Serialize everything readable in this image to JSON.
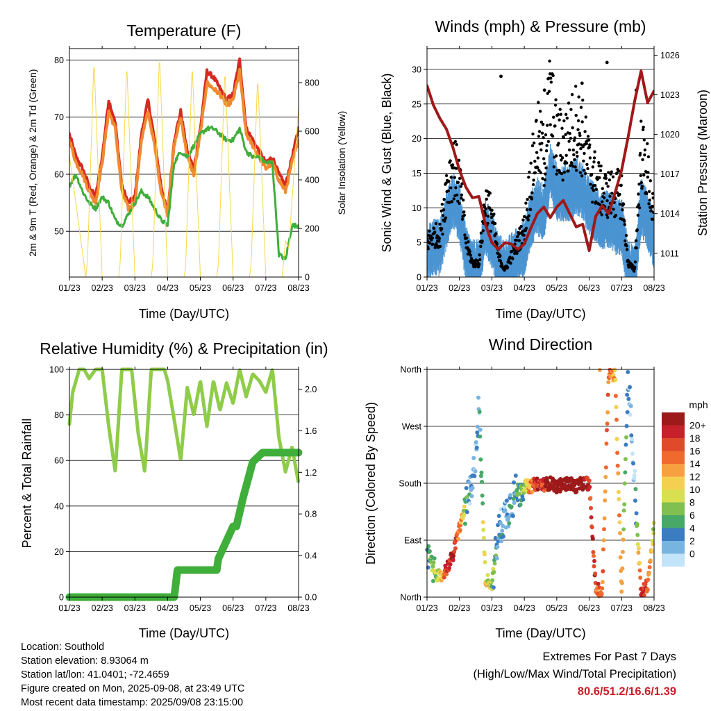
{
  "ticks_x": [
    "01/23",
    "02/23",
    "03/23",
    "04/23",
    "05/23",
    "06/23",
    "07/23",
    "08/23"
  ],
  "chart_data": [
    {
      "type": "line",
      "title": "Temperature (F)",
      "xlabel": "Time (Day/UTC)",
      "ylabel": "2m & 9m T (Red, Orange) & 2m Td (Green)",
      "y2label": "Solar Insolation (Yellow)",
      "ylim": [
        42,
        82
      ],
      "y2lim": [
        0,
        940
      ],
      "yticks": [
        50,
        60,
        70,
        80
      ],
      "y2ticks": [
        0,
        200,
        400,
        600,
        800
      ],
      "grid": true,
      "series": [
        {
          "name": "2m T",
          "color": "#d62a20",
          "x": [
            0,
            0.2,
            0.4,
            0.6,
            0.8,
            1.0,
            1.2,
            1.4,
            1.6,
            1.8,
            2.0,
            2.2,
            2.4,
            2.6,
            2.8,
            3.0,
            3.2,
            3.4,
            3.6,
            3.8,
            4.0,
            4.2,
            4.4,
            4.6,
            4.8,
            5.0,
            5.2,
            5.4,
            5.6,
            5.8,
            6.0,
            6.2,
            6.4,
            6.6,
            6.8,
            7.0
          ],
          "values": [
            67,
            63,
            61,
            58,
            56,
            63,
            73,
            69,
            58,
            55,
            56,
            67,
            73,
            66,
            58,
            53,
            66,
            71,
            64,
            61,
            68,
            78,
            77,
            75,
            73,
            74,
            80,
            68,
            66,
            64,
            62,
            63,
            60,
            58,
            63,
            68
          ]
        },
        {
          "name": "9m T",
          "color": "#f08a30",
          "x": [
            0,
            0.2,
            0.4,
            0.6,
            0.8,
            1.0,
            1.2,
            1.4,
            1.6,
            1.8,
            2.0,
            2.2,
            2.4,
            2.6,
            2.8,
            3.0,
            3.2,
            3.4,
            3.6,
            3.8,
            4.0,
            4.2,
            4.4,
            4.6,
            4.8,
            5.0,
            5.2,
            5.4,
            5.6,
            5.8,
            6.0,
            6.2,
            6.4,
            6.6,
            6.8,
            7.0
          ],
          "values": [
            66,
            62,
            60,
            57,
            55,
            62,
            71,
            68,
            57,
            54,
            55,
            66,
            71,
            65,
            57,
            53,
            65,
            70,
            63,
            60,
            67,
            76,
            75,
            74,
            72,
            73,
            78,
            67,
            65,
            63,
            61,
            62,
            59,
            57,
            62,
            66
          ]
        },
        {
          "name": "2m Td",
          "color": "#3fae3a",
          "x": [
            0,
            0.2,
            0.4,
            0.6,
            0.8,
            1.0,
            1.2,
            1.4,
            1.6,
            1.8,
            2.0,
            2.2,
            2.4,
            2.6,
            2.8,
            3.0,
            3.2,
            3.4,
            3.6,
            3.8,
            4.0,
            4.2,
            4.4,
            4.6,
            4.8,
            5.0,
            5.2,
            5.4,
            5.6,
            5.8,
            6.0,
            6.2,
            6.4,
            6.6,
            6.8,
            7.0
          ],
          "values": [
            58,
            60,
            57,
            55,
            54,
            56,
            55,
            52,
            51,
            53,
            55,
            57,
            56,
            54,
            52,
            51,
            62,
            64,
            63,
            65,
            67,
            68,
            68,
            67,
            66,
            66,
            68,
            64,
            63,
            63,
            62,
            62,
            46,
            45,
            51,
            51
          ]
        },
        {
          "name": "Solar Insolation",
          "color": "#f7d84a",
          "axis": "right",
          "x": [
            0,
            0.5,
            0.55,
            0.75,
            1.0,
            1.5,
            1.55,
            1.75,
            2.0,
            2.5,
            2.55,
            2.75,
            3.0,
            3.5,
            3.55,
            3.75,
            4.0,
            4.5,
            4.55,
            4.75,
            5.0,
            5.5,
            5.55,
            5.75,
            6.0,
            6.5,
            6.6,
            6.7,
            7.0
          ],
          "values": [
            500,
            0,
            60,
            900,
            0,
            0,
            50,
            880,
            0,
            0,
            60,
            920,
            0,
            0,
            40,
            880,
            0,
            0,
            50,
            860,
            0,
            0,
            50,
            830,
            0,
            0,
            150,
            120,
            700
          ]
        }
      ]
    },
    {
      "type": "scatter",
      "title": "Winds (mph) & Pressure (mb)",
      "xlabel": "Time (Day/UTC)",
      "ylabel": "Sonic Wind & Gust (Blue, Black)",
      "y2label": "Station Pressure (Maroon)",
      "ylim": [
        0,
        33
      ],
      "y2lim": [
        1009.2,
        1026.5
      ],
      "yticks": [
        0,
        5,
        10,
        15,
        20,
        25,
        30
      ],
      "y2ticks": [
        1011,
        1014,
        1017,
        1020,
        1023,
        1026
      ],
      "grid": true,
      "series": [
        {
          "name": "Sonic Wind",
          "color": "#4b94d2",
          "x": [
            0,
            0.2,
            0.4,
            0.6,
            0.8,
            1.0,
            1.2,
            1.4,
            1.6,
            1.8,
            2.0,
            2.2,
            2.4,
            2.6,
            2.8,
            3.0,
            3.2,
            3.4,
            3.6,
            3.8,
            4.0,
            4.2,
            4.4,
            4.6,
            4.8,
            5.0,
            5.2,
            5.4,
            5.6,
            5.8,
            6.0,
            6.2,
            6.4,
            6.6,
            6.8,
            7.0
          ],
          "values": [
            3,
            4,
            4,
            8,
            11,
            9,
            3,
            1,
            1,
            7,
            5,
            2,
            1,
            2,
            3,
            4,
            8,
            10,
            9,
            15,
            12,
            12,
            12,
            13,
            12,
            10,
            9,
            8,
            8,
            7,
            7,
            1,
            0,
            10,
            8,
            5
          ]
        },
        {
          "name": "Gust",
          "color": "#000000",
          "x": [
            0,
            0.2,
            0.4,
            0.6,
            0.8,
            1.0,
            1.2,
            1.4,
            1.6,
            1.8,
            2.0,
            2.2,
            2.4,
            2.6,
            2.8,
            3.0,
            3.2,
            3.4,
            3.6,
            3.8,
            4.0,
            4.2,
            4.4,
            4.6,
            4.8,
            5.0,
            5.2,
            5.4,
            5.6,
            5.8,
            6.0,
            6.2,
            6.4,
            6.6,
            6.8,
            7.0
          ],
          "values": [
            5,
            6,
            6,
            13,
            16,
            14,
            5,
            2,
            2,
            11,
            9,
            3,
            1,
            3,
            5,
            7,
            14,
            20,
            17,
            26,
            19,
            19,
            20,
            22,
            20,
            16,
            14,
            12,
            12,
            12,
            12,
            2,
            1,
            18,
            15,
            8
          ]
        },
        {
          "name": "Station Pressure",
          "color": "#a01818",
          "axis": "right",
          "x": [
            0,
            0.2,
            0.4,
            0.6,
            0.8,
            1.0,
            1.2,
            1.4,
            1.6,
            1.8,
            2.0,
            2.2,
            2.4,
            2.6,
            2.8,
            3.0,
            3.2,
            3.4,
            3.6,
            3.8,
            4.0,
            4.2,
            4.4,
            4.6,
            4.8,
            5.0,
            5.2,
            5.4,
            5.6,
            5.8,
            6.0,
            6.2,
            6.4,
            6.6,
            6.8,
            7.0
          ],
          "values": [
            1023.7,
            1022.2,
            1021.2,
            1020.4,
            1019.0,
            1017.3,
            1016.0,
            1015.2,
            1015.3,
            1013.2,
            1011.8,
            1011.3,
            1011.8,
            1011.7,
            1011.3,
            1011.7,
            1012.9,
            1014.0,
            1014.5,
            1013.7,
            1014.5,
            1015.0,
            1014.0,
            1013.0,
            1013.2,
            1011.2,
            1013.8,
            1014.6,
            1014.0,
            1015.6,
            1017.3,
            1019.8,
            1022.5,
            1024.8,
            1022.4,
            1023.3
          ]
        }
      ]
    },
    {
      "type": "line",
      "title": "Relative Humidity (%) & Precipitation (in)",
      "xlabel": "Time (Day/UTC)",
      "ylabel": "Percent & Total Rainfall",
      "ylim": [
        0,
        100
      ],
      "y2lim": [
        0,
        2.19
      ],
      "yticks": [
        0,
        20,
        40,
        60,
        80,
        100
      ],
      "y2ticks": [
        0.0,
        0.4,
        0.8,
        1.2,
        1.6,
        2.0
      ],
      "grid": true,
      "series": [
        {
          "name": "Relative Humidity",
          "color": "#8fcc4a",
          "x": [
            0,
            0.1,
            0.3,
            0.45,
            0.6,
            0.8,
            1.0,
            1.2,
            1.4,
            1.6,
            1.75,
            1.9,
            2.1,
            2.3,
            2.5,
            2.7,
            2.9,
            3.0,
            3.2,
            3.4,
            3.6,
            3.8,
            4.0,
            4.2,
            4.4,
            4.6,
            4.8,
            5.0,
            5.2,
            5.4,
            5.6,
            5.8,
            6.0,
            6.2,
            6.4,
            6.6,
            6.8,
            7.0
          ],
          "values": [
            76,
            90,
            100,
            100,
            96,
            100,
            100,
            75,
            55,
            100,
            100,
            100,
            72,
            55,
            100,
            100,
            100,
            95,
            78,
            60,
            92,
            80,
            95,
            75,
            95,
            82,
            94,
            85,
            100,
            88,
            98,
            95,
            90,
            100,
            70,
            55,
            66,
            50
          ]
        },
        {
          "name": "Total Precipitation",
          "color": "#3fae3a",
          "axis": "right",
          "x": [
            0,
            3.2,
            3.3,
            4.5,
            4.55,
            5.0,
            5.1,
            5.3,
            5.6,
            5.9,
            6.2,
            7.0
          ],
          "values": [
            0,
            0,
            0.26,
            0.26,
            0.37,
            0.68,
            0.68,
            0.95,
            1.3,
            1.39,
            1.39,
            1.39
          ]
        }
      ]
    },
    {
      "type": "scatter",
      "title": "Wind Direction",
      "xlabel": "Time (Day/UTC)",
      "ylabel": "Direction (Colored By Speed)",
      "yticks": [
        "North",
        "East",
        "South",
        "West",
        "North"
      ],
      "ylim": [
        0,
        360
      ],
      "legend_title": "mph",
      "legend_labels": [
        "20+",
        "18",
        "16",
        "14",
        "12",
        "10",
        "8",
        "6",
        "4",
        "2",
        "0"
      ],
      "legend_colors": [
        "#9e1a1a",
        "#c8202a",
        "#e04a2a",
        "#f06a30",
        "#f7a040",
        "#f5d050",
        "#d8e050",
        "#7fc050",
        "#48a868",
        "#3c7cc0",
        "#78b4e0",
        "#c2e4f8"
      ],
      "series": [
        {
          "name": "Wind Direction",
          "x": [
            0,
            0.2,
            0.4,
            0.6,
            0.8,
            1.0,
            1.2,
            1.4,
            1.6,
            1.8,
            2.0,
            2.2,
            2.4,
            2.6,
            2.8,
            3.0,
            3.2,
            3.4,
            3.6,
            3.8,
            4.0,
            4.2,
            4.4,
            4.6,
            4.8,
            5.0,
            5.2,
            5.4,
            5.6,
            5.8,
            6.0,
            6.2,
            6.4,
            6.6,
            6.8,
            7.0
          ],
          "values": [
            70,
            45,
            30,
            45,
            65,
            110,
            145,
            170,
            300,
            30,
            20,
            100,
            130,
            150,
            170,
            175,
            175,
            180,
            178,
            180,
            175,
            178,
            180,
            175,
            180,
            180,
            15,
            5,
            355,
            350,
            10,
            355,
            180,
            5,
            20,
            110
          ],
          "speeds": [
            3,
            4,
            5,
            9,
            11,
            8,
            3,
            1,
            1,
            6,
            4,
            2,
            1,
            2,
            3,
            4,
            8,
            10,
            9,
            13,
            12,
            12,
            12,
            13,
            12,
            10,
            9,
            8,
            8,
            7,
            7,
            1,
            0,
            10,
            8,
            5
          ]
        }
      ]
    }
  ],
  "info": {
    "location": "Location: Southold",
    "elevation": "Station elevation: 8.93064 m",
    "latlon": "Station lat/lon: 41.0401; -72.4659",
    "created": "Figure created on Mon, 2025-09-08, at 23:49 UTC",
    "recent": "Most recent data timestamp: 2025/09/08 23:15:00"
  },
  "extremes": {
    "title": "Extremes For Past 7 Days",
    "subtitle": "(High/Low/Max Wind/Total Precipitation)",
    "values": "80.6/51.2/16.6/1.39"
  }
}
